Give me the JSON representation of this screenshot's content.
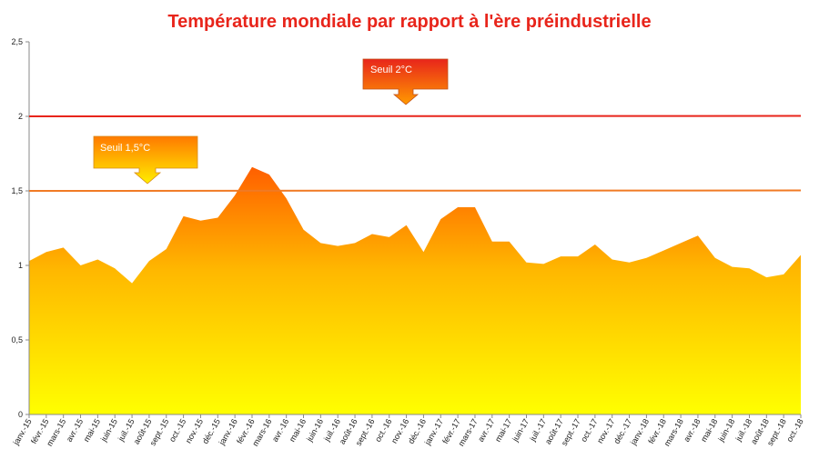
{
  "chart_data": {
    "type": "area",
    "title": "Température mondiale par rapport à l'ère préindustrielle",
    "xlabel": "",
    "ylabel": "",
    "ylim": [
      0,
      2.5
    ],
    "y_ticks": [
      "0",
      "0,5",
      "1",
      "1,5",
      "2",
      "2,5"
    ],
    "grid": false,
    "categories": [
      "janv.-15",
      "févr.-15",
      "mars-15",
      "avr.-15",
      "mai-15",
      "juin-15",
      "juil.-15",
      "août-15",
      "sept.-15",
      "oct.-15",
      "nov.-15",
      "déc.-15",
      "janv.-16",
      "févr.-16",
      "mars-16",
      "avr.-16",
      "mai-16",
      "juin-16",
      "juil.-16",
      "août-16",
      "sept.-16",
      "oct.-16",
      "nov.-16",
      "déc.-16",
      "janv.-17",
      "févr.-17",
      "mars-17",
      "avr.-17",
      "mai-17",
      "juin-17",
      "juil.-17",
      "août-17",
      "sept.-17",
      "oct.-17",
      "nov.-17",
      "déc.-17",
      "janv.-18",
      "févr.-18",
      "mars-18",
      "avr.-18",
      "mai-18",
      "juin-18",
      "juil.-18",
      "août-18",
      "sept.-18",
      "oct.-18"
    ],
    "values": [
      1.03,
      1.09,
      1.12,
      1.0,
      1.04,
      0.98,
      0.88,
      1.03,
      1.11,
      1.33,
      1.3,
      1.32,
      1.47,
      1.66,
      1.61,
      1.45,
      1.24,
      1.15,
      1.13,
      1.15,
      1.21,
      1.19,
      1.27,
      1.09,
      1.31,
      1.39,
      1.39,
      1.16,
      1.16,
      1.02,
      1.01,
      1.06,
      1.06,
      1.14,
      1.04,
      1.02,
      1.05,
      1.1,
      1.15,
      1.2,
      1.05,
      0.99,
      0.98,
      0.92,
      0.94,
      1.07
    ],
    "thresholds": [
      {
        "label": "Seuil 2°C",
        "value": 2.0,
        "color": "#e8251b"
      },
      {
        "label": "Seuil 1,5°C",
        "value": 1.5,
        "color": "#f07a24"
      }
    ],
    "colors": {
      "fill_top": "#ff5f00",
      "fill_mid": "#ffb800",
      "fill_bottom": "#ffff00",
      "title": "#e8251b"
    }
  }
}
